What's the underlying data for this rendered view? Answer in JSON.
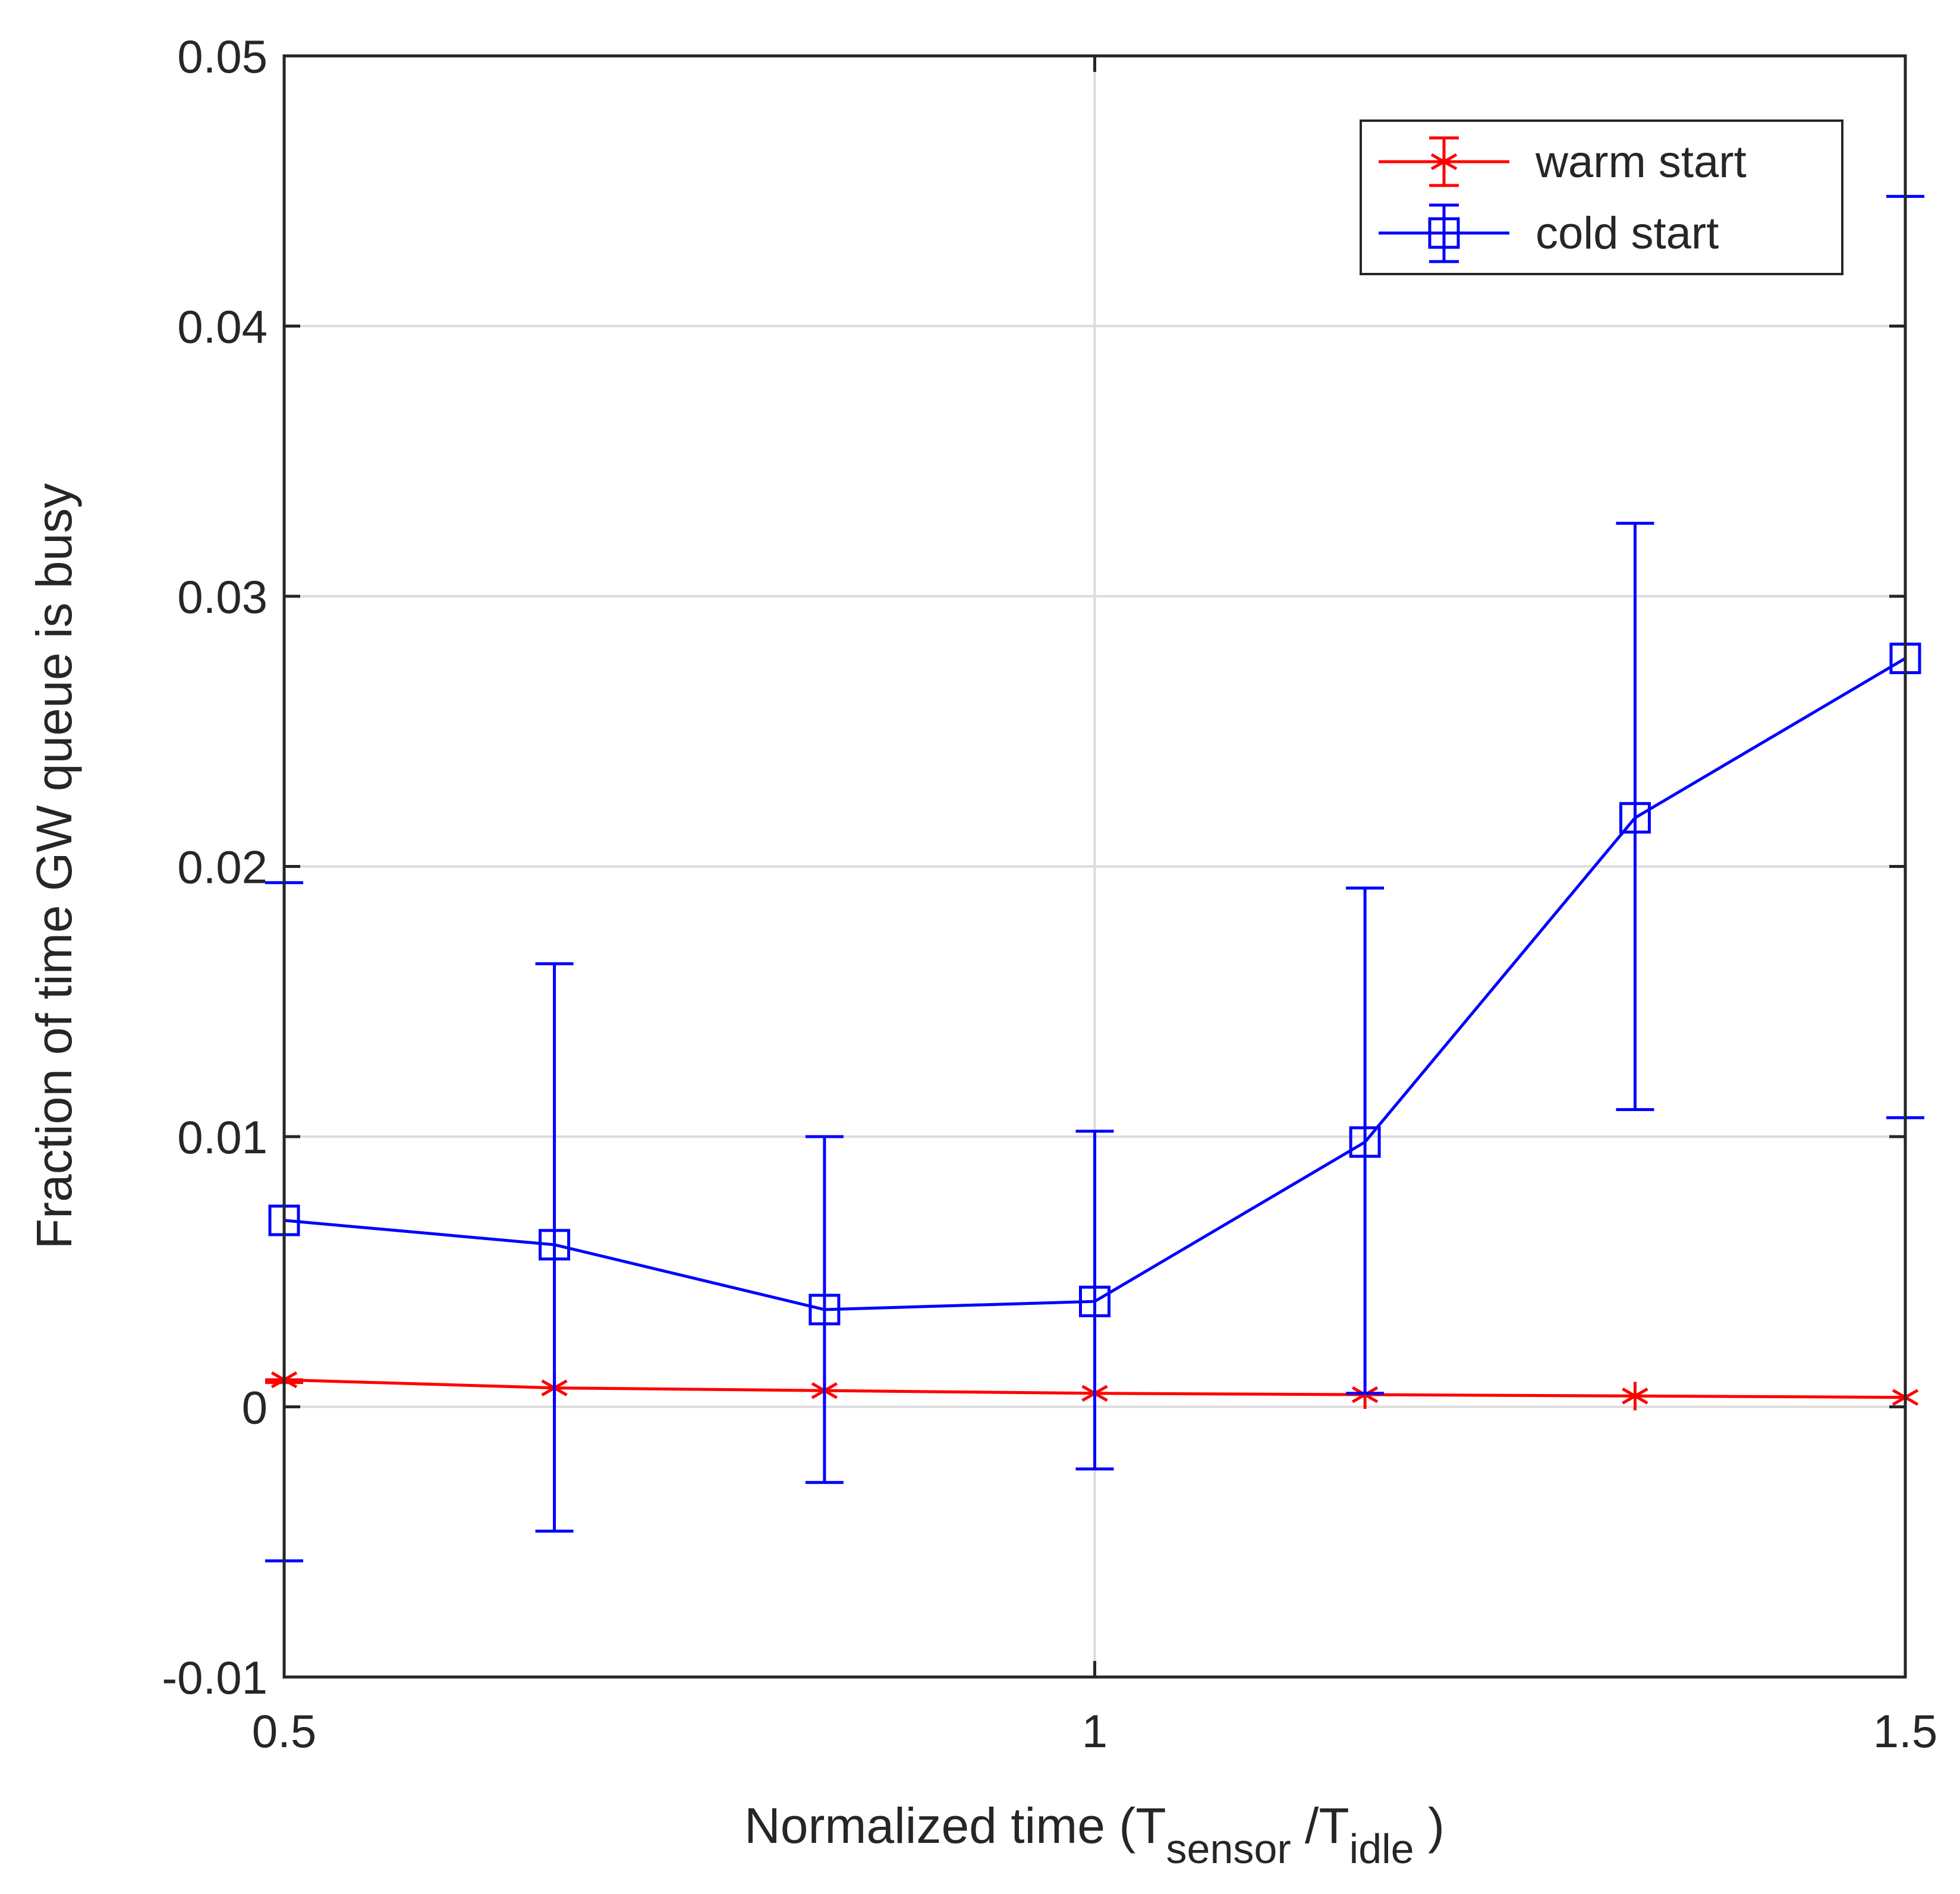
{
  "chart_data": {
    "type": "line",
    "title": "",
    "xlabel": {
      "prefix": "Normalized time (T",
      "sub1": "sensor",
      "middle": " /T",
      "sub2": "idle",
      "suffix": " )"
    },
    "ylabel": "Fraction of time GW queue is busy",
    "xlim": [
      0.5,
      1.5
    ],
    "ylim": [
      -0.01,
      0.05
    ],
    "xticks": [
      0.5,
      1,
      1.5
    ],
    "xtick_labels": [
      "0.5",
      "1",
      "1.5"
    ],
    "yticks": [
      -0.01,
      0,
      0.01,
      0.02,
      0.03,
      0.04,
      0.05
    ],
    "ytick_labels": [
      "-0.01",
      "0",
      "0.01",
      "0.02",
      "0.03",
      "0.04",
      "0.05"
    ],
    "grid": true,
    "legend_position": "top-right",
    "x": [
      0.5,
      0.6667,
      0.8333,
      1.0,
      1.1667,
      1.3333,
      1.5
    ],
    "series": [
      {
        "name": "warm start",
        "color": "#ff0000",
        "marker": "star",
        "values": [
          0.001,
          0.0007,
          0.0006,
          0.0005,
          0.00045,
          0.0004,
          0.00035
        ],
        "err_low": [
          0.0009,
          0.0007,
          0.0006,
          0.0005,
          0.00045,
          0.0004,
          0.00035
        ],
        "err_high": [
          0.001,
          0.0007,
          0.0006,
          0.0005,
          0.00045,
          0.0004,
          0.00035
        ]
      },
      {
        "name": "cold start",
        "color": "#0000ff",
        "marker": "square",
        "values": [
          0.0069,
          0.006,
          0.0036,
          0.0039,
          0.0098,
          0.0218,
          0.0277
        ],
        "err_low": [
          -0.0057,
          -0.0046,
          -0.0028,
          -0.0023,
          0.0005,
          0.011,
          0.0107
        ],
        "err_high": [
          0.0194,
          0.0164,
          0.01,
          0.0102,
          0.0192,
          0.0327,
          0.0448
        ]
      }
    ]
  }
}
